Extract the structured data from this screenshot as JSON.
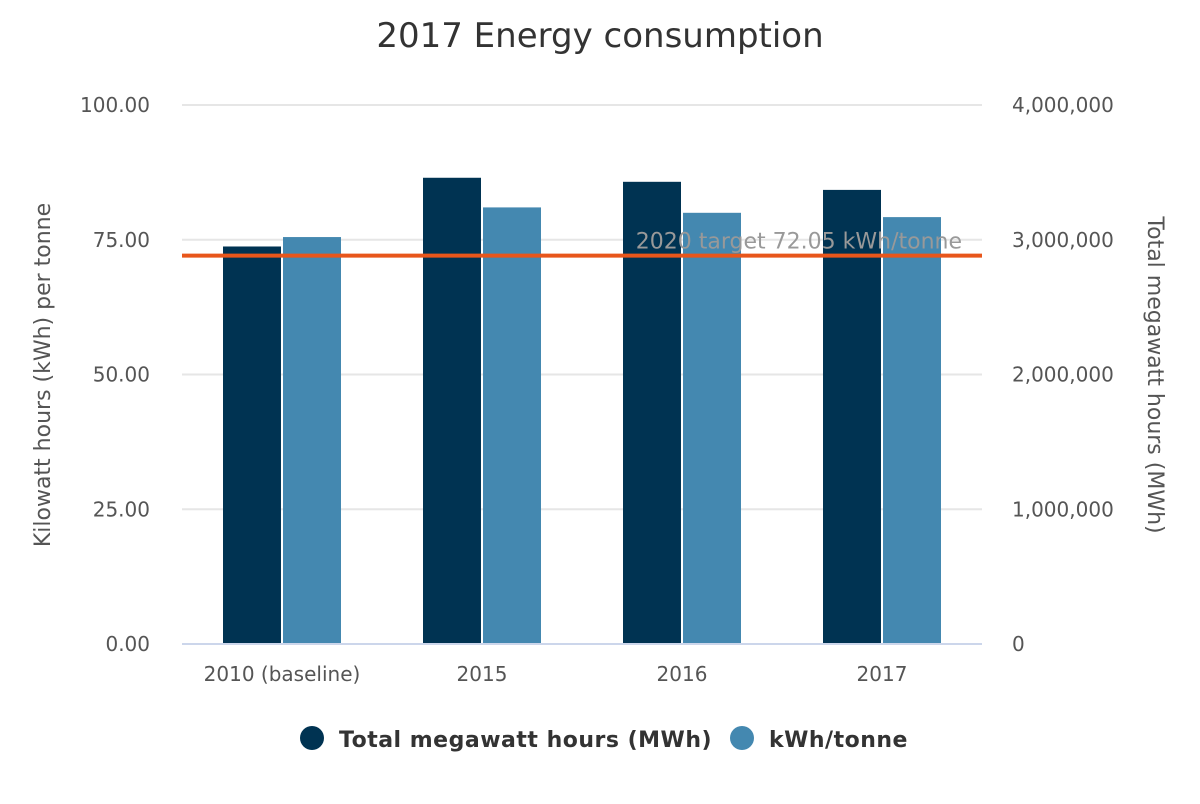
{
  "chart_data": {
    "type": "bar",
    "title": "2017 Energy consumption",
    "categories": [
      "2010 (baseline)",
      "2015",
      "2016",
      "2017"
    ],
    "series": [
      {
        "name": "Total megawatt hours (MWh)",
        "axis": "right",
        "color": "#003352",
        "values": [
          2950000,
          3460000,
          3430000,
          3370000
        ]
      },
      {
        "name": "kWh/tonne",
        "axis": "left",
        "color": "#4488b0",
        "values": [
          75.5,
          81.0,
          80.0,
          79.2
        ]
      }
    ],
    "y_left": {
      "label": "Kilowatt hours (kWh) per tonne",
      "min": 0,
      "max": 100,
      "ticks": [
        "0.00",
        "25.00",
        "50.00",
        "75.00",
        "100.00"
      ]
    },
    "y_right": {
      "label": "Total megawatt hours (MWh)",
      "min": 0,
      "max": 4000000,
      "ticks": [
        "0",
        "1,000,000",
        "2,000,000",
        "3,000,000",
        "4,000,000"
      ]
    },
    "target_line": {
      "value": 72.05,
      "label": "2020 target 72.05 kWh/tonne",
      "color": "#e8561b",
      "axis": "left"
    },
    "grid": true,
    "legend_position": "bottom"
  }
}
